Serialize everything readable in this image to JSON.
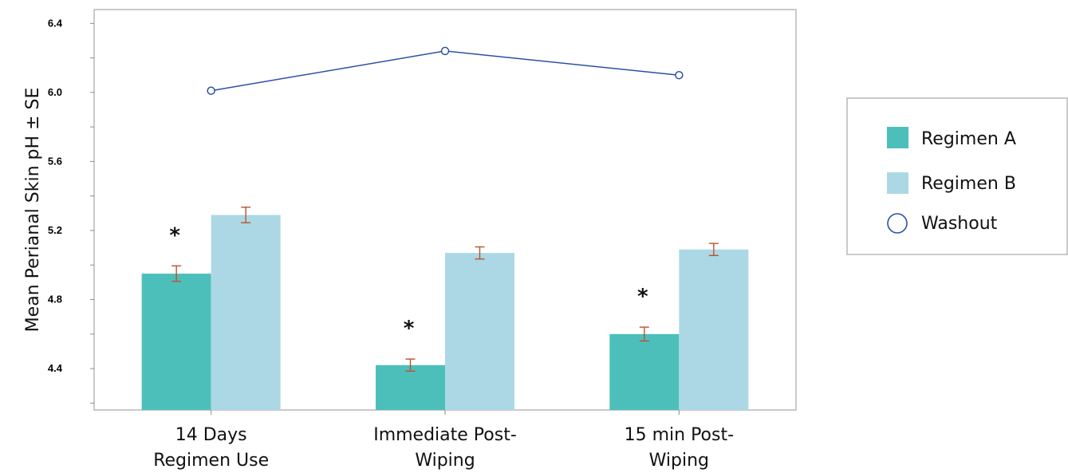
{
  "chart_data": {
    "type": "bar",
    "ylabel": "Mean Perianal Skin pH ± SE",
    "ylim": [
      4.16,
      6.48
    ],
    "yticks": [
      4.4,
      4.8,
      5.2,
      5.6,
      6.0,
      6.4
    ],
    "yticks_minor": [
      4.2,
      4.6,
      5.0,
      5.4,
      5.8,
      6.2
    ],
    "categories": [
      [
        "14 Days",
        "Regimen Use"
      ],
      [
        "Immediate Post-",
        "Wiping"
      ],
      [
        "15 min Post-",
        "Wiping"
      ]
    ],
    "series": [
      {
        "name": "Regimen A",
        "kind": "bar",
        "color": "#4dbfbb",
        "values": [
          4.95,
          4.42,
          4.6
        ],
        "errors": [
          0.045,
          0.035,
          0.04
        ],
        "significance": [
          "*",
          "*",
          "*"
        ]
      },
      {
        "name": "Regimen B",
        "kind": "bar",
        "color": "#acd8e5",
        "values": [
          5.29,
          5.07,
          5.09
        ],
        "errors": [
          0.045,
          0.035,
          0.035
        ]
      },
      {
        "name": "Washout",
        "kind": "line",
        "color": "#2c4fa8",
        "values": [
          6.01,
          6.24,
          6.1
        ]
      }
    ],
    "error_bar_color": "#c0502c",
    "grid": false,
    "legend_position": "right"
  }
}
